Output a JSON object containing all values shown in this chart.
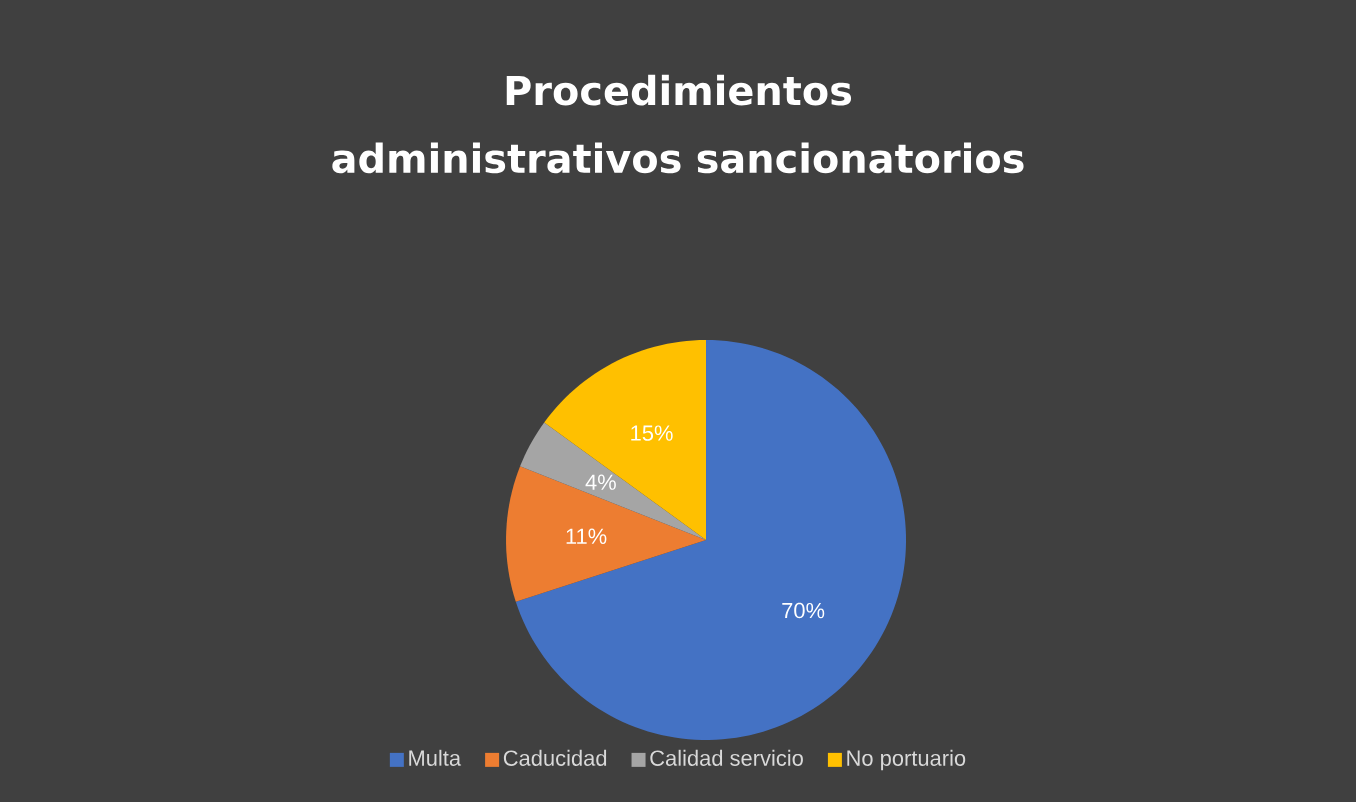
{
  "chart_data": {
    "type": "pie",
    "title": "Procedimientos administrativos sancionatorios",
    "categories": [
      "Multa",
      "Caducidad",
      "Calidad servicio",
      "No portuario"
    ],
    "values": [
      70,
      11,
      4,
      15
    ],
    "colors": [
      "#4472c4",
      "#ed7d31",
      "#a5a5a5",
      "#ffc000"
    ],
    "value_labels": [
      "70%",
      "11%",
      "4%",
      "15%"
    ],
    "legend": "bottom"
  }
}
